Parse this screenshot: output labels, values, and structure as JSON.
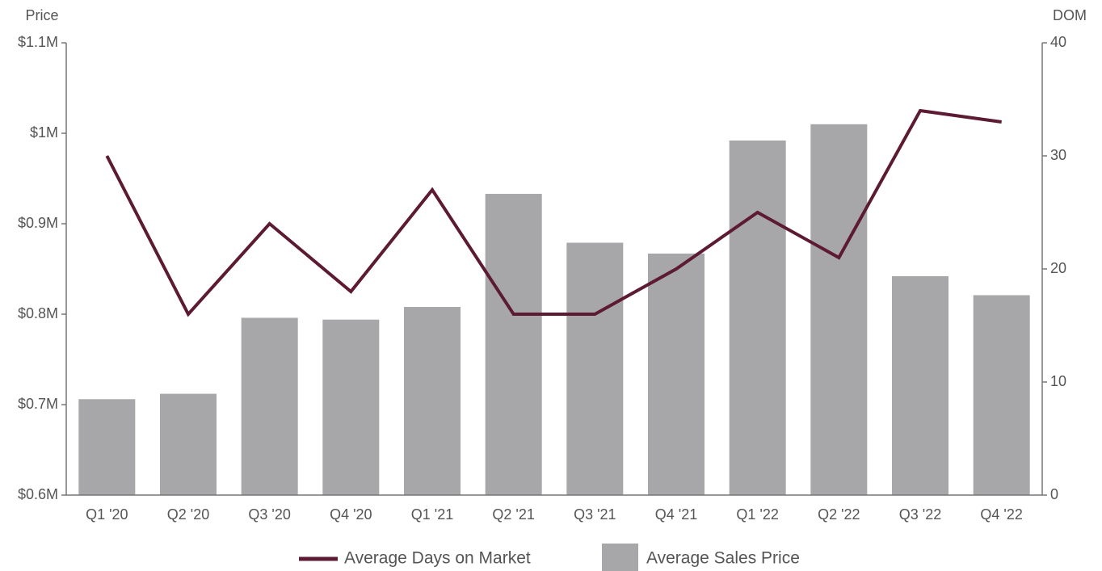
{
  "chart_data": {
    "type": "bar",
    "y_label": "Price",
    "y2_label": "DOM",
    "categories": [
      "Q1 '20",
      "Q2 '20",
      "Q3 '20",
      "Q4 '20",
      "Q1 '21",
      "Q2 '21",
      "Q3 '21",
      "Q4 '21",
      "Q1 '22",
      "Q2 '22",
      "Q3 '22",
      "Q4 '22"
    ],
    "series": [
      {
        "name": "Average Days on Market",
        "type": "line",
        "axis": "y2",
        "color": "#5c1a33",
        "values": [
          30,
          16,
          24,
          18,
          27,
          16,
          16,
          20,
          25,
          21,
          34,
          33
        ]
      },
      {
        "name": "Average Sales Price",
        "type": "bar",
        "color": "#a7a7a9",
        "values": [
          706000,
          712000,
          796000,
          794000,
          808000,
          933000,
          879000,
          867000,
          992000,
          1010000,
          842000,
          821000
        ]
      }
    ],
    "ylim": [
      600000,
      1100000
    ],
    "yticks": [
      {
        "value": 600000,
        "label": "$0.6M"
      },
      {
        "value": 700000,
        "label": "$0.7M"
      },
      {
        "value": 800000,
        "label": "$0.8M"
      },
      {
        "value": 900000,
        "label": "$0.9M"
      },
      {
        "value": 1000000,
        "label": "$1M"
      },
      {
        "value": 1100000,
        "label": "$1.1M"
      }
    ],
    "y2lim": [
      0,
      40
    ],
    "y2ticks": [
      0,
      10,
      20,
      30,
      40
    ],
    "grid": false,
    "legend": "bottom"
  }
}
